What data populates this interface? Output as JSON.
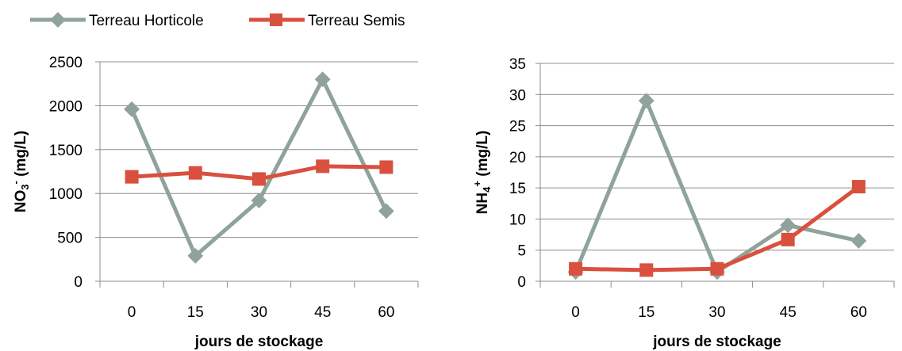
{
  "legend": [
    {
      "name": "Terreau Horticole",
      "color": "#8fa39a",
      "marker": "diamond"
    },
    {
      "name": "Terreau Semis",
      "color": "#d9503f",
      "marker": "square"
    }
  ],
  "chart_data": [
    {
      "type": "line",
      "categories": [
        "0",
        "15",
        "30",
        "45",
        "60"
      ],
      "xlabel": "jours de stockage",
      "ylabel": {
        "base": "NO",
        "sub": "3",
        "sup": "-",
        "unit": " (mg/L)"
      },
      "ylim": [
        0,
        2500
      ],
      "yticks": [
        0,
        500,
        1000,
        1500,
        2000,
        2500
      ],
      "grid": true,
      "series": [
        {
          "name": "Terreau Horticole",
          "values": [
            1960,
            290,
            920,
            2300,
            800
          ]
        },
        {
          "name": "Terreau Semis",
          "values": [
            1190,
            1235,
            1165,
            1310,
            1300
          ]
        }
      ]
    },
    {
      "type": "line",
      "categories": [
        "0",
        "15",
        "30",
        "45",
        "60"
      ],
      "xlabel": "jours de stockage",
      "ylabel": {
        "base": "NH",
        "sub": "4",
        "sup": "+",
        "unit": " (mg/L)"
      },
      "ylim": [
        0,
        35
      ],
      "yticks": [
        0,
        5,
        10,
        15,
        20,
        25,
        30,
        35
      ],
      "grid": true,
      "series": [
        {
          "name": "Terreau Horticole",
          "values": [
            1.5,
            29,
            1.5,
            9,
            6.5
          ]
        },
        {
          "name": "Terreau Semis",
          "values": [
            2,
            1.8,
            2,
            6.7,
            15.2
          ]
        }
      ]
    }
  ]
}
